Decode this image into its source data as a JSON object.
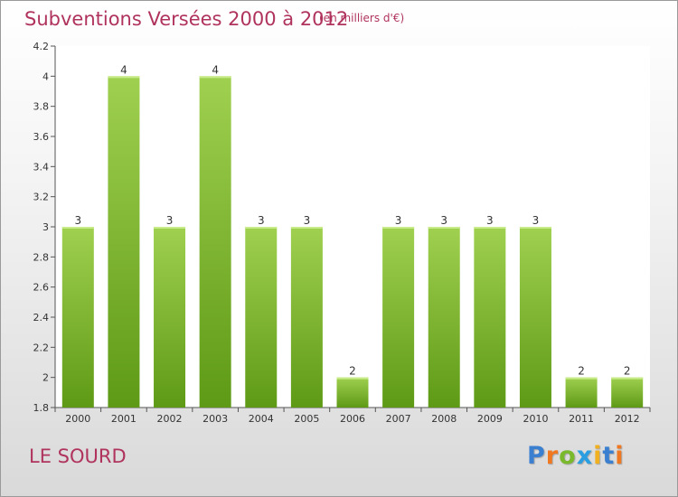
{
  "header": {
    "title": "Subventions Versées 2000 à 2012",
    "subtitle": "(en milliers d'€)"
  },
  "footer": {
    "commune": "LE SOURD",
    "logo_letters": [
      "P",
      "r",
      "o",
      "x",
      "i",
      "t",
      "i"
    ],
    "logo_colors": [
      "#3a7fd0",
      "#f07820",
      "#7ab82c",
      "#2a9ee0",
      "#f0b020",
      "#3a7fd0",
      "#f07820"
    ]
  },
  "chart_data": {
    "type": "bar",
    "title": "Subventions Versées 2000 à 2012",
    "subtitle": "(en milliers d'€)",
    "xlabel": "",
    "ylabel": "",
    "categories": [
      "2000",
      "2001",
      "2002",
      "2003",
      "2004",
      "2005",
      "2006",
      "2007",
      "2008",
      "2009",
      "2010",
      "2011",
      "2012"
    ],
    "values": [
      3,
      4,
      3,
      4,
      3,
      3,
      2,
      3,
      3,
      3,
      3,
      2,
      2
    ],
    "data_labels": [
      "3",
      "4",
      "3",
      "4",
      "3",
      "3",
      "2",
      "3",
      "3",
      "3",
      "3",
      "2",
      "2"
    ],
    "ylim": [
      1.8,
      4.2
    ],
    "yticks": [
      1.8,
      2,
      2.2,
      2.4,
      2.6,
      2.8,
      3,
      3.2,
      3.4,
      3.6,
      3.8,
      4,
      4.2
    ],
    "ytick_labels": [
      "1.8",
      "2",
      "2.2",
      "2.4",
      "2.6",
      "2.8",
      "3",
      "3.2",
      "3.4",
      "3.6",
      "3.8",
      "4",
      "4.2"
    ],
    "grid": false,
    "legend": "none",
    "bar_color_top": "#a0d050",
    "bar_color_bottom": "#5e9a16"
  }
}
